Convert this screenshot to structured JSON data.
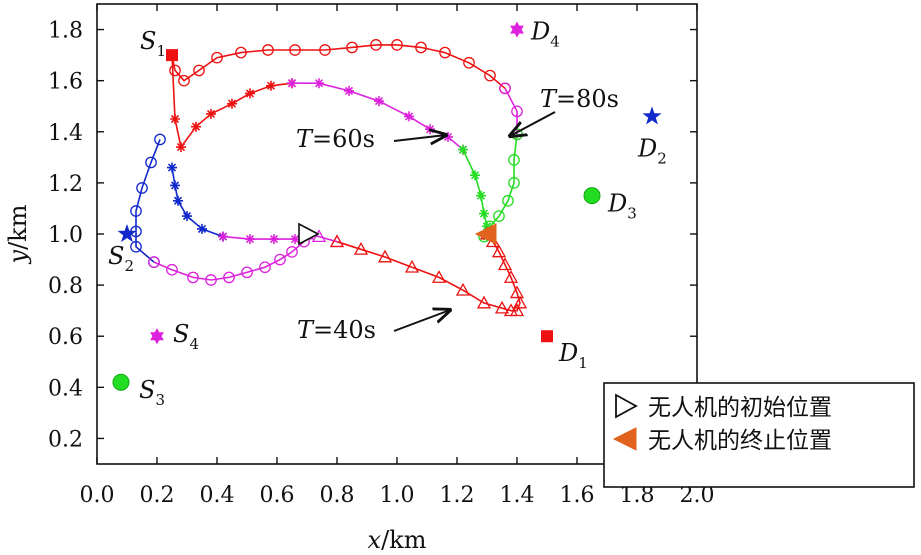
{
  "chart_data": {
    "type": "line",
    "xlabel": "x/km",
    "ylabel": "y/km",
    "xlim": [
      0.0,
      2.0
    ],
    "ylim": [
      0.1,
      1.9
    ],
    "xticks": [
      "0.0",
      "0.2",
      "0.4",
      "0.6",
      "0.8",
      "1.0",
      "1.2",
      "1.4",
      "1.6",
      "1.8",
      "2.0"
    ],
    "yticks": [
      "0.2",
      "0.4",
      "0.6",
      "0.8",
      "1.0",
      "1.2",
      "1.4",
      "1.6",
      "1.8"
    ],
    "grid": false,
    "legend_position": "bottom-right",
    "legend": [
      {
        "marker": "open-triangle-right",
        "label": "无人机的初始位置"
      },
      {
        "marker": "filled-triangle-left",
        "label": "无人机的终止位置"
      }
    ],
    "annotations": [
      {
        "text": "T=60s",
        "x": 1.18,
        "y": 1.37
      },
      {
        "text": "T=80s",
        "x": 1.42,
        "y": 1.44
      },
      {
        "text": "T=40s",
        "x": 1.18,
        "y": 0.75
      }
    ],
    "points": [
      {
        "label": "S",
        "sub": "1",
        "x": 0.25,
        "y": 1.7,
        "marker": "square",
        "color": "#ee1111"
      },
      {
        "label": "S",
        "sub": "2",
        "x": 0.1,
        "y": 1.0,
        "marker": "star",
        "color": "#1128cc"
      },
      {
        "label": "S",
        "sub": "3",
        "x": 0.08,
        "y": 0.42,
        "marker": "circle",
        "color": "#22dd22"
      },
      {
        "label": "S",
        "sub": "4",
        "x": 0.2,
        "y": 0.6,
        "marker": "hexagram",
        "color": "#dd22dd"
      },
      {
        "label": "D",
        "sub": "1",
        "x": 1.5,
        "y": 0.6,
        "marker": "square",
        "color": "#ee1111"
      },
      {
        "label": "D",
        "sub": "2",
        "x": 1.85,
        "y": 1.46,
        "marker": "star",
        "color": "#1128cc"
      },
      {
        "label": "D",
        "sub": "3",
        "x": 1.65,
        "y": 1.15,
        "marker": "circle",
        "color": "#22dd22"
      },
      {
        "label": "D",
        "sub": "4",
        "x": 1.4,
        "y": 1.8,
        "marker": "hexagram",
        "color": "#dd22dd"
      }
    ],
    "series": [
      {
        "segments": [
          {
            "color": "#ee1111",
            "marker": "o",
            "x": [
              0.25,
              0.26,
              0.29,
              0.34,
              0.4,
              0.48,
              0.57,
              0.66,
              0.76,
              0.85,
              0.93,
              1.0,
              1.08,
              1.16,
              1.24,
              1.31,
              1.36
            ],
            "y": [
              1.7,
              1.64,
              1.6,
              1.64,
              1.69,
              1.71,
              1.72,
              1.72,
              1.72,
              1.73,
              1.74,
              1.74,
              1.73,
              1.71,
              1.67,
              1.62,
              1.57
            ]
          },
          {
            "color": "#dd22dd",
            "marker": "o",
            "x": [
              1.36,
              1.4,
              1.4
            ],
            "y": [
              1.57,
              1.48,
              1.39
            ]
          },
          {
            "color": "#22dd22",
            "marker": "o",
            "x": [
              1.4,
              1.39,
              1.39,
              1.37,
              1.34,
              1.31,
              1.29
            ],
            "y": [
              1.39,
              1.29,
              1.2,
              1.13,
              1.07,
              1.03,
              0.99
            ]
          },
          {
            "color": "#1128cc",
            "marker": "o",
            "x": [
              0.21,
              0.18,
              0.15,
              0.13,
              0.13,
              0.13,
              0.19
            ],
            "y": [
              1.37,
              1.28,
              1.18,
              1.09,
              1.01,
              0.95,
              0.89
            ]
          },
          {
            "color": "#dd22dd",
            "marker": "o",
            "x": [
              0.19,
              0.25,
              0.32,
              0.38,
              0.44,
              0.5,
              0.56,
              0.61,
              0.65,
              0.69
            ],
            "y": [
              0.89,
              0.86,
              0.83,
              0.82,
              0.83,
              0.85,
              0.87,
              0.9,
              0.93,
              0.97
            ]
          }
        ]
      },
      {
        "segments": [
          {
            "color": "#ee1111",
            "marker": "*",
            "x": [
              0.25,
              0.26,
              0.28,
              0.33,
              0.38,
              0.45,
              0.51,
              0.58,
              0.65
            ],
            "y": [
              1.7,
              1.45,
              1.34,
              1.42,
              1.47,
              1.51,
              1.55,
              1.58,
              1.59
            ]
          },
          {
            "color": "#dd22dd",
            "marker": "*",
            "x": [
              0.65,
              0.74,
              0.84,
              0.94,
              1.04,
              1.11,
              1.17,
              1.22
            ],
            "y": [
              1.59,
              1.59,
              1.56,
              1.52,
              1.46,
              1.41,
              1.38,
              1.33
            ]
          },
          {
            "color": "#22dd22",
            "marker": "*",
            "x": [
              1.22,
              1.26,
              1.28,
              1.29,
              1.3,
              1.3
            ],
            "y": [
              1.33,
              1.23,
              1.15,
              1.08,
              1.03,
              0.99
            ]
          },
          {
            "color": "#1128cc",
            "marker": "*",
            "x": [
              0.25,
              0.26,
              0.27,
              0.3,
              0.35,
              0.42
            ],
            "y": [
              1.26,
              1.19,
              1.13,
              1.07,
              1.02,
              0.99
            ]
          },
          {
            "color": "#dd22dd",
            "marker": "*",
            "x": [
              0.42,
              0.51,
              0.59,
              0.66
            ],
            "y": [
              0.99,
              0.98,
              0.98,
              0.98
            ]
          }
        ]
      },
      {
        "segments": [
          {
            "color": "#dd22dd",
            "marker": "^",
            "x": [
              0.7,
              0.74,
              0.8
            ],
            "y": [
              1.0,
              0.99,
              0.97
            ]
          },
          {
            "color": "#ee1111",
            "marker": "^",
            "x": [
              0.8,
              0.88,
              0.96,
              1.05,
              1.14,
              1.22,
              1.29,
              1.35,
              1.38,
              1.4,
              1.41,
              1.4,
              1.38,
              1.36,
              1.34,
              1.32,
              1.3
            ],
            "y": [
              0.97,
              0.94,
              0.91,
              0.87,
              0.83,
              0.78,
              0.73,
              0.71,
              0.7,
              0.7,
              0.73,
              0.77,
              0.83,
              0.88,
              0.93,
              0.97,
              1.0
            ]
          }
        ]
      }
    ],
    "start_marker": {
      "x": 0.7,
      "y": 1.0
    },
    "end_marker": {
      "x": 1.3,
      "y": 1.0
    }
  }
}
